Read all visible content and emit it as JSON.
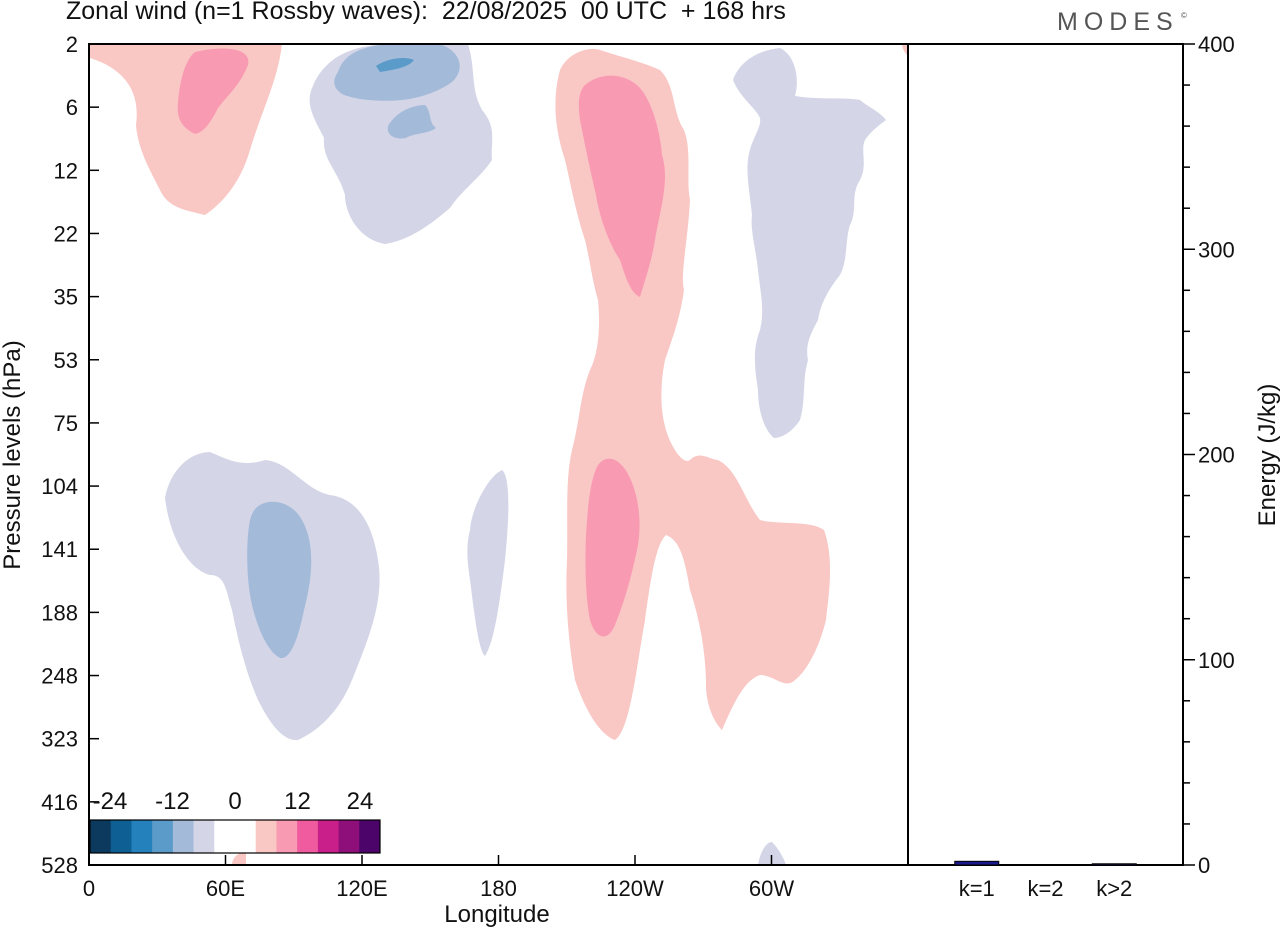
{
  "title": "Zonal wind (n=1 Rossby waves):  22/08/2025  00 UTC  + 168 hrs",
  "brand": "MODES",
  "brand_mark": "©",
  "chart_data": [
    {
      "type": "heatmap",
      "description_of_fields": "filled contours of zonal wind; negative values blue, positive values pink",
      "xlabel": "Longitude",
      "ylabel": "Pressure levels (hPa)",
      "x_ticks": [
        {
          "label": "0",
          "lon": 0
        },
        {
          "label": "60E",
          "lon": 60
        },
        {
          "label": "120E",
          "lon": 120
        },
        {
          "label": "180",
          "lon": 180
        },
        {
          "label": "120W",
          "lon": 240
        },
        {
          "label": "60W",
          "lon": 300
        }
      ],
      "xlim": [
        0,
        360
      ],
      "y_levels": [
        "2",
        "6",
        "12",
        "22",
        "35",
        "53",
        "75",
        "104",
        "141",
        "188",
        "248",
        "323",
        "416",
        "528"
      ],
      "colorbar": {
        "tick_labels": [
          "-24",
          "-12",
          "0",
          "12",
          "24"
        ],
        "colors": [
          "#0c3a5e",
          "#0d5f94",
          "#2481bc",
          "#5a9bca",
          "#a3bad9",
          "#d4d6e8",
          "#ffffff",
          "#ffffff",
          "#f9c8c5",
          "#f99ab3",
          "#ef5b9e",
          "#c91f8a",
          "#8e0e7a",
          "#4c046b"
        ]
      },
      "positive_colors": {
        "light": "#f9c8c5",
        "mid": "#f99ab3"
      },
      "negative_colors": {
        "light": "#d4d6e8",
        "mid": "#a3bad9",
        "strong": "#5a9bca"
      }
    },
    {
      "type": "bar",
      "categories": [
        "k=1",
        "k=2",
        "k>2"
      ],
      "values": [
        1.8,
        0,
        0.6
      ],
      "ylabel": "Energy (J/kg)",
      "ylim": [
        0,
        400
      ],
      "y_ticks": [
        "0",
        "100",
        "200",
        "300",
        "400"
      ],
      "bar_colors": [
        "#1a1a8c",
        "#1a1a8c",
        "#1a1a8c"
      ]
    }
  ]
}
